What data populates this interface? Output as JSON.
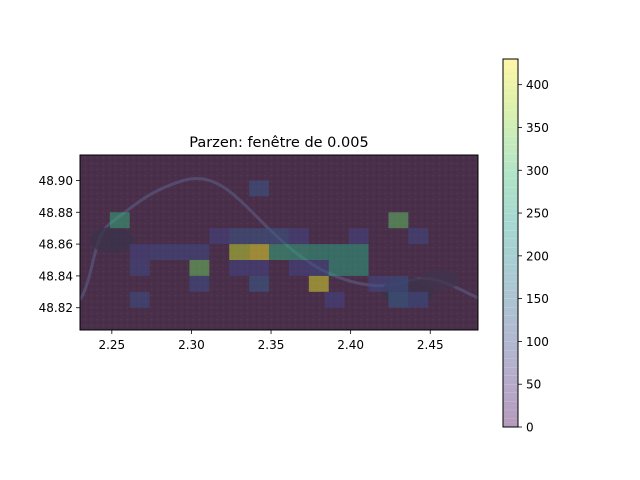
{
  "chart_data": {
    "type": "heatmap",
    "title": "Parzen: fenêtre de 0.005",
    "xlabel": "",
    "ylabel": "",
    "xlim": [
      2.23,
      2.48
    ],
    "ylim": [
      48.806,
      48.916
    ],
    "x_ticks": [
      {
        "value": 2.25,
        "label": "2.25"
      },
      {
        "value": 2.3,
        "label": "2.30"
      },
      {
        "value": 2.35,
        "label": "2.35"
      },
      {
        "value": 2.4,
        "label": "2.40"
      },
      {
        "value": 2.45,
        "label": "2.45"
      }
    ],
    "y_ticks": [
      {
        "value": 48.82,
        "label": "48.82"
      },
      {
        "value": 48.84,
        "label": "48.84"
      },
      {
        "value": 48.86,
        "label": "48.86"
      },
      {
        "value": 48.88,
        "label": "48.88"
      },
      {
        "value": 48.9,
        "label": "48.90"
      }
    ],
    "grid": false,
    "background": "satellite map of Paris (dark)",
    "colormap": "viridis",
    "alpha": 0.4,
    "cell_size": [
      0.0125,
      0.01
    ],
    "cells": [
      {
        "x": 2.255,
        "y": 48.875,
        "v": 280
      },
      {
        "x": 2.3425,
        "y": 48.895,
        "v": 120
      },
      {
        "x": 2.3175,
        "y": 48.865,
        "v": 90
      },
      {
        "x": 2.33,
        "y": 48.865,
        "v": 120
      },
      {
        "x": 2.3425,
        "y": 48.865,
        "v": 120
      },
      {
        "x": 2.355,
        "y": 48.865,
        "v": 120
      },
      {
        "x": 2.3675,
        "y": 48.865,
        "v": 90
      },
      {
        "x": 2.405,
        "y": 48.865,
        "v": 90
      },
      {
        "x": 2.2675,
        "y": 48.855,
        "v": 90
      },
      {
        "x": 2.28,
        "y": 48.855,
        "v": 100
      },
      {
        "x": 2.2925,
        "y": 48.855,
        "v": 100
      },
      {
        "x": 2.305,
        "y": 48.855,
        "v": 100
      },
      {
        "x": 2.33,
        "y": 48.855,
        "v": 390
      },
      {
        "x": 2.3425,
        "y": 48.855,
        "v": 420
      },
      {
        "x": 2.355,
        "y": 48.855,
        "v": 280
      },
      {
        "x": 2.3675,
        "y": 48.855,
        "v": 270
      },
      {
        "x": 2.38,
        "y": 48.855,
        "v": 260
      },
      {
        "x": 2.3925,
        "y": 48.855,
        "v": 260
      },
      {
        "x": 2.405,
        "y": 48.855,
        "v": 260
      },
      {
        "x": 2.4425,
        "y": 48.865,
        "v": 100
      },
      {
        "x": 2.43,
        "y": 48.875,
        "v": 320
      },
      {
        "x": 2.2675,
        "y": 48.845,
        "v": 100
      },
      {
        "x": 2.305,
        "y": 48.845,
        "v": 330
      },
      {
        "x": 2.33,
        "y": 48.845,
        "v": 90
      },
      {
        "x": 2.3425,
        "y": 48.845,
        "v": 90
      },
      {
        "x": 2.3675,
        "y": 48.845,
        "v": 90
      },
      {
        "x": 2.38,
        "y": 48.845,
        "v": 100
      },
      {
        "x": 2.3925,
        "y": 48.845,
        "v": 260
      },
      {
        "x": 2.405,
        "y": 48.845,
        "v": 260
      },
      {
        "x": 2.305,
        "y": 48.835,
        "v": 110
      },
      {
        "x": 2.3425,
        "y": 48.835,
        "v": 130
      },
      {
        "x": 2.38,
        "y": 48.835,
        "v": 410
      },
      {
        "x": 2.4175,
        "y": 48.835,
        "v": 100
      },
      {
        "x": 2.43,
        "y": 48.835,
        "v": 110
      },
      {
        "x": 2.2675,
        "y": 48.825,
        "v": 110
      },
      {
        "x": 2.39,
        "y": 48.825,
        "v": 90
      },
      {
        "x": 2.43,
        "y": 48.825,
        "v": 130
      },
      {
        "x": 2.4425,
        "y": 48.825,
        "v": 100
      }
    ],
    "colorbar": {
      "min": 0,
      "max": 430,
      "ticks": [
        {
          "value": 0,
          "label": "0"
        },
        {
          "value": 50,
          "label": "50"
        },
        {
          "value": 100,
          "label": "100"
        },
        {
          "value": 150,
          "label": "150"
        },
        {
          "value": 200,
          "label": "200"
        },
        {
          "value": 250,
          "label": "250"
        },
        {
          "value": 300,
          "label": "300"
        },
        {
          "value": 350,
          "label": "350"
        },
        {
          "value": 400,
          "label": "400"
        }
      ]
    }
  },
  "colors": {
    "map_base": "#4a3d45",
    "map_river": "#5d7085",
    "viridis": [
      "#440154",
      "#482878",
      "#3e4989",
      "#31688e",
      "#26828e",
      "#1f9e89",
      "#35b779",
      "#6ece58",
      "#b5de2b",
      "#fde725"
    ]
  }
}
